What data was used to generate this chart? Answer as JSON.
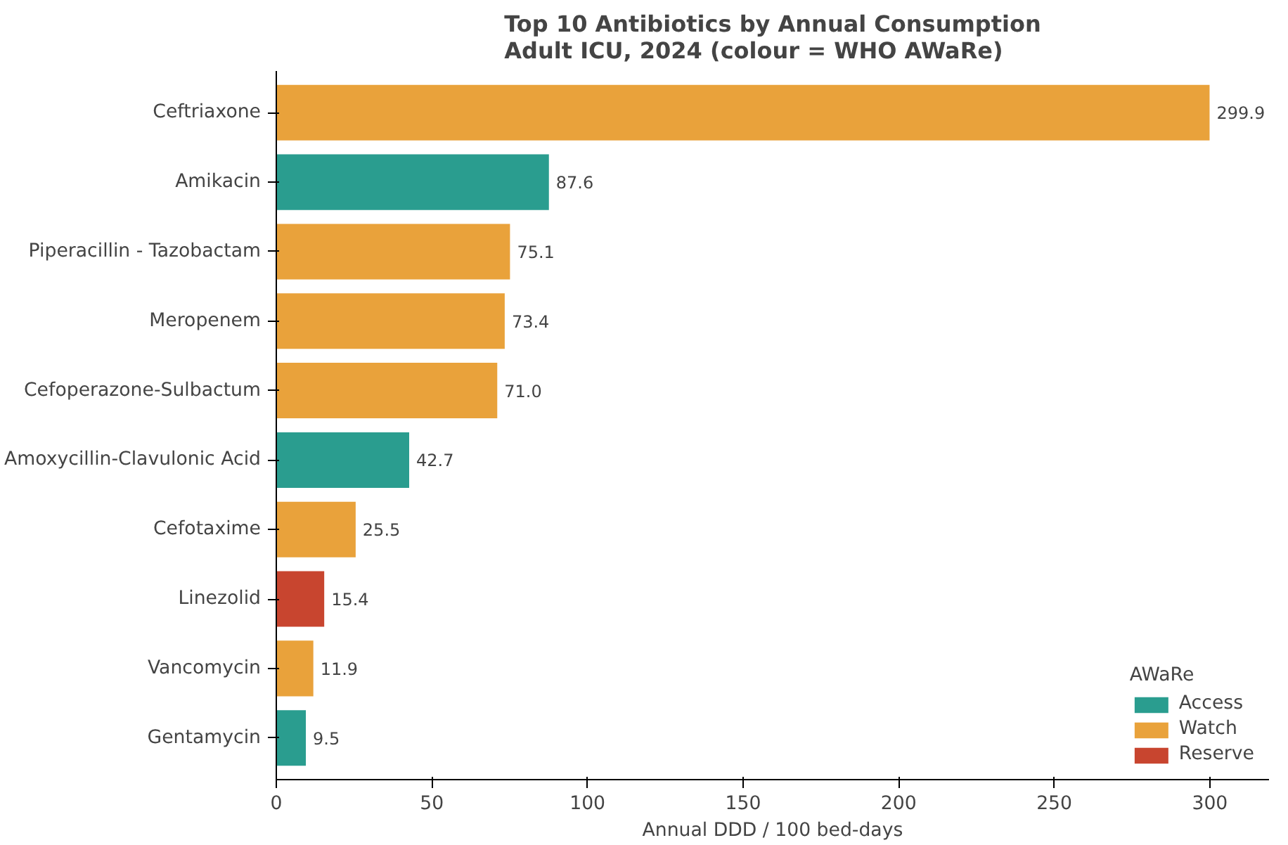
{
  "chart_data": {
    "type": "bar",
    "orientation": "horizontal",
    "title": "Top 10 Antibiotics by Annual Consumption\nAdult ICU, 2024 (colour = WHO AWaRe)",
    "xlabel": "Annual DDD / 100 bed-days",
    "legend_title": "AWaRe",
    "legend": "bottom right",
    "grid": false,
    "categories": [
      "Ceftriaxone",
      "Amikacin",
      "Piperacillin - Tazobactam",
      "Meropenem",
      "Cefoperazone-Sulbactum",
      "Amoxycillin-Clavulonic Acid",
      "Cefotaxime",
      "Linezolid",
      "Vancomycin",
      "Gentamycin"
    ],
    "series": [
      {
        "name": "Access",
        "color": "#2a9d8f",
        "values": [
          null,
          87.6,
          null,
          null,
          null,
          42.7,
          null,
          null,
          null,
          9.5
        ]
      },
      {
        "name": "Watch",
        "color": "#e9a23b",
        "values": [
          299.9,
          null,
          75.1,
          73.4,
          71.0,
          null,
          25.5,
          null,
          11.9,
          null
        ]
      },
      {
        "name": "Reserve",
        "color": "#c8452f",
        "values": [
          null,
          null,
          null,
          null,
          null,
          null,
          null,
          15.4,
          null,
          null
        ]
      }
    ],
    "value_labels": [
      "299.9",
      "87.6",
      "75.1",
      "73.4",
      "71.0",
      "42.7",
      "25.5",
      "15.4",
      "11.9",
      "9.5"
    ],
    "xlim": [
      0,
      319
    ],
    "xticks": [
      0,
      50,
      100,
      150,
      200,
      250,
      300
    ]
  }
}
